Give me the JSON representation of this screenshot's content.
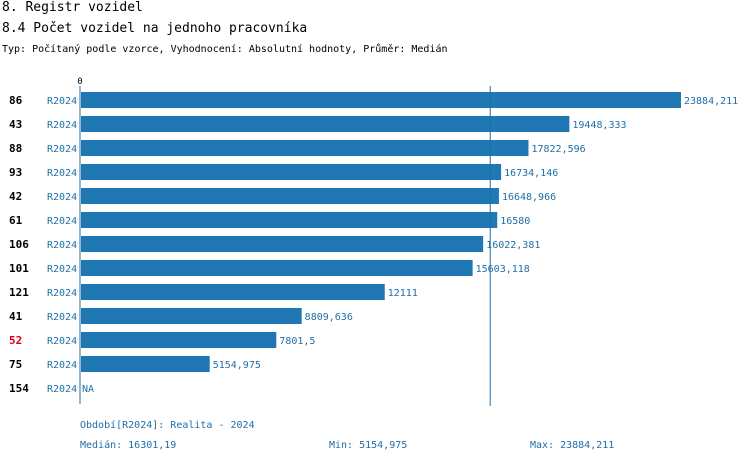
{
  "header": {
    "title": "8. Registr vozidel",
    "subtitle": "8.4 Počet vozidel na jednoho pracovníka",
    "type_line": "Typ: Počítaný podle vzorce, Vyhodnocení: Absolutní hodnoty, Průměr: Medián"
  },
  "chart_data": {
    "type": "bar",
    "orientation": "horizontal",
    "axis_zero_label": "0",
    "series_name": "R2024",
    "xlim": [
      0,
      23884.211
    ],
    "median": 16301.19,
    "rows": [
      {
        "id": "86",
        "series": "R2024",
        "value": 23884.211,
        "label": "23884,211",
        "highlight": false
      },
      {
        "id": "43",
        "series": "R2024",
        "value": 19448.333,
        "label": "19448,333",
        "highlight": false
      },
      {
        "id": "88",
        "series": "R2024",
        "value": 17822.596,
        "label": "17822,596",
        "highlight": false
      },
      {
        "id": "93",
        "series": "R2024",
        "value": 16734.146,
        "label": "16734,146",
        "highlight": false
      },
      {
        "id": "42",
        "series": "R2024",
        "value": 16648.966,
        "label": "16648,966",
        "highlight": false
      },
      {
        "id": "61",
        "series": "R2024",
        "value": 16580,
        "label": "16580",
        "highlight": false
      },
      {
        "id": "106",
        "series": "R2024",
        "value": 16022.381,
        "label": "16022,381",
        "highlight": false
      },
      {
        "id": "101",
        "series": "R2024",
        "value": 15603.118,
        "label": "15603,118",
        "highlight": false
      },
      {
        "id": "121",
        "series": "R2024",
        "value": 12111,
        "label": "12111",
        "highlight": false
      },
      {
        "id": "41",
        "series": "R2024",
        "value": 8809.636,
        "label": "8809,636",
        "highlight": false
      },
      {
        "id": "52",
        "series": "R2024",
        "value": 7801.5,
        "label": "7801,5",
        "highlight": true
      },
      {
        "id": "75",
        "series": "R2024",
        "value": 5154.975,
        "label": "5154,975",
        "highlight": false
      },
      {
        "id": "154",
        "series": "R2024",
        "value": null,
        "label": "NA",
        "highlight": false
      }
    ]
  },
  "footer": {
    "period": "Období[R2024]: Realita - 2024",
    "median": "Medián: 16301,19",
    "min": "Min: 5154,975",
    "max": "Max: 23884,211"
  },
  "colors": {
    "bar": "#1f77b4",
    "text_blue": "#1f6fa8",
    "highlight": "#e0000b",
    "axis": "#1f6fa8"
  }
}
